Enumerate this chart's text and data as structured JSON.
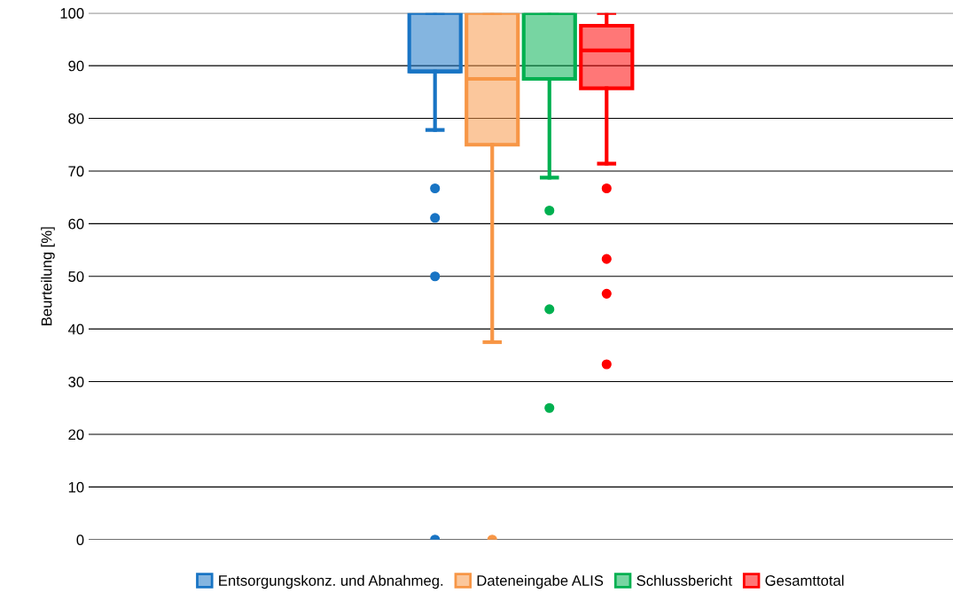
{
  "chart_data": {
    "type": "box",
    "ylabel": "Beurteilung [%]",
    "categories": [
      null
    ],
    "series": [
      {
        "name": "Entsorgungskonz. und Abnahmeg.",
        "color": "#1874c4",
        "boxes": [
          {
            "low": 77.8,
            "q1": 88.9,
            "median": 88.9,
            "q3": 100,
            "high": 100,
            "outliers": [
              66.7,
              61.1,
              50,
              0
            ]
          }
        ]
      },
      {
        "name": "Dateneingabe ALIS",
        "color": "#f79646",
        "boxes": [
          {
            "low": 37.5,
            "q1": 75,
            "median": 87.5,
            "q3": 100,
            "high": 100,
            "outliers": [
              0
            ]
          }
        ]
      },
      {
        "name": "Schlussbericht",
        "color": "#00b050",
        "boxes": [
          {
            "low": 68.75,
            "q1": 87.5,
            "median": 100,
            "q3": 100,
            "high": 100,
            "outliers": [
              62.5,
              43.75,
              25
            ]
          }
        ]
      },
      {
        "name": "Gesamttotal",
        "color": "#ff0000",
        "boxes": [
          {
            "low": 71.4,
            "q1": 85.7,
            "median": 92.9,
            "q3": 97.6,
            "high": 100,
            "outliers": [
              66.7,
              53.3,
              46.7,
              33.3
            ]
          }
        ]
      }
    ],
    "ylim": [
      0,
      100
    ],
    "yticks": [
      0,
      10,
      20,
      30,
      40,
      50,
      60,
      70,
      80,
      90,
      100
    ],
    "grid": "y",
    "legend": "bottom"
  }
}
